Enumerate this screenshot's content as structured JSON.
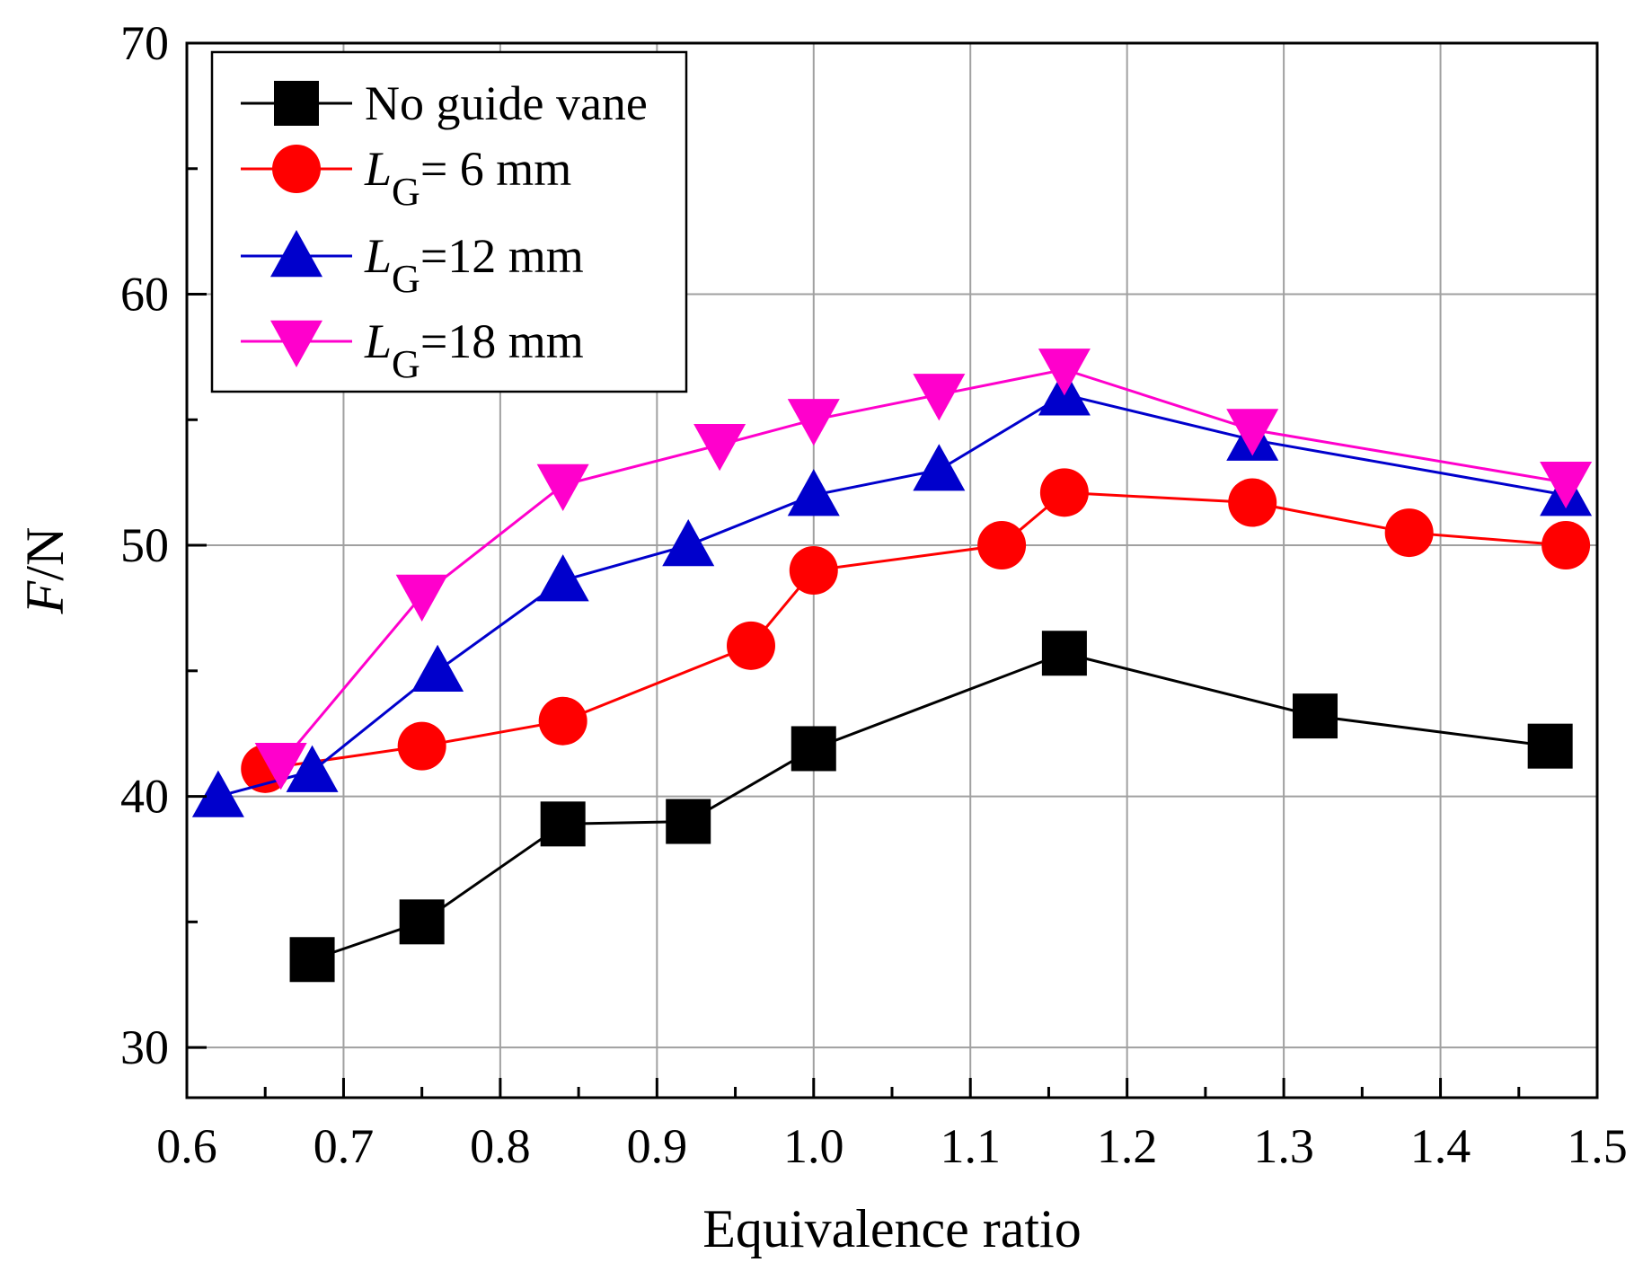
{
  "chart_data": {
    "type": "line",
    "xlabel": "Equivalence ratio",
    "ylabel": {
      "italic": "F",
      "rest": "/N"
    },
    "xlim": [
      0.6,
      1.5
    ],
    "ylim": [
      28,
      70
    ],
    "x_ticks": [
      "0.6",
      "0.7",
      "0.8",
      "0.9",
      "1.0",
      "1.1",
      "1.2",
      "1.3",
      "1.4",
      "1.5"
    ],
    "y_ticks": [
      "30",
      "40",
      "50",
      "60",
      "70"
    ],
    "grid": true,
    "legend_position": "top-left",
    "series": [
      {
        "name": "No guide vane",
        "label_parts": {
          "italic": "",
          "sub": "",
          "rest": "No guide vane"
        },
        "color": "#000000",
        "marker": "square",
        "points": [
          [
            0.68,
            33.5
          ],
          [
            0.75,
            35.0
          ],
          [
            0.84,
            38.9
          ],
          [
            0.92,
            39.0
          ],
          [
            1.0,
            41.9
          ],
          [
            1.16,
            45.7
          ],
          [
            1.32,
            43.2
          ],
          [
            1.47,
            42.0
          ]
        ]
      },
      {
        "name": "LG= 6 mm",
        "label_parts": {
          "italic": "L",
          "sub": "G",
          "rest": "= 6 mm"
        },
        "color": "#ff0000",
        "marker": "circle",
        "points": [
          [
            0.65,
            41.1
          ],
          [
            0.75,
            42.0
          ],
          [
            0.84,
            43.0
          ],
          [
            0.96,
            46.0
          ],
          [
            1.0,
            49.0
          ],
          [
            1.12,
            50.0
          ],
          [
            1.16,
            52.1
          ],
          [
            1.28,
            51.7
          ],
          [
            1.38,
            50.5
          ],
          [
            1.48,
            50.0
          ]
        ]
      },
      {
        "name": "LG=12 mm",
        "label_parts": {
          "italic": "L",
          "sub": "G",
          "rest": "=12 mm"
        },
        "color": "#0000cc",
        "marker": "triangle-up",
        "points": [
          [
            0.62,
            40.0
          ],
          [
            0.68,
            41.0
          ],
          [
            0.76,
            45.0
          ],
          [
            0.84,
            48.6
          ],
          [
            0.92,
            50.0
          ],
          [
            1.0,
            52.0
          ],
          [
            1.08,
            53.0
          ],
          [
            1.16,
            56.0
          ],
          [
            1.28,
            54.2
          ],
          [
            1.48,
            52.0
          ]
        ]
      },
      {
        "name": "LG=18 mm",
        "label_parts": {
          "italic": "L",
          "sub": "G",
          "rest": "=18 mm"
        },
        "color": "#ff00cc",
        "marker": "triangle-down",
        "points": [
          [
            0.66,
            41.3
          ],
          [
            0.75,
            48.0
          ],
          [
            0.84,
            52.4
          ],
          [
            0.94,
            54.0
          ],
          [
            1.0,
            55.0
          ],
          [
            1.08,
            56.0
          ],
          [
            1.16,
            57.0
          ],
          [
            1.28,
            54.6
          ],
          [
            1.48,
            52.5
          ]
        ]
      }
    ]
  }
}
